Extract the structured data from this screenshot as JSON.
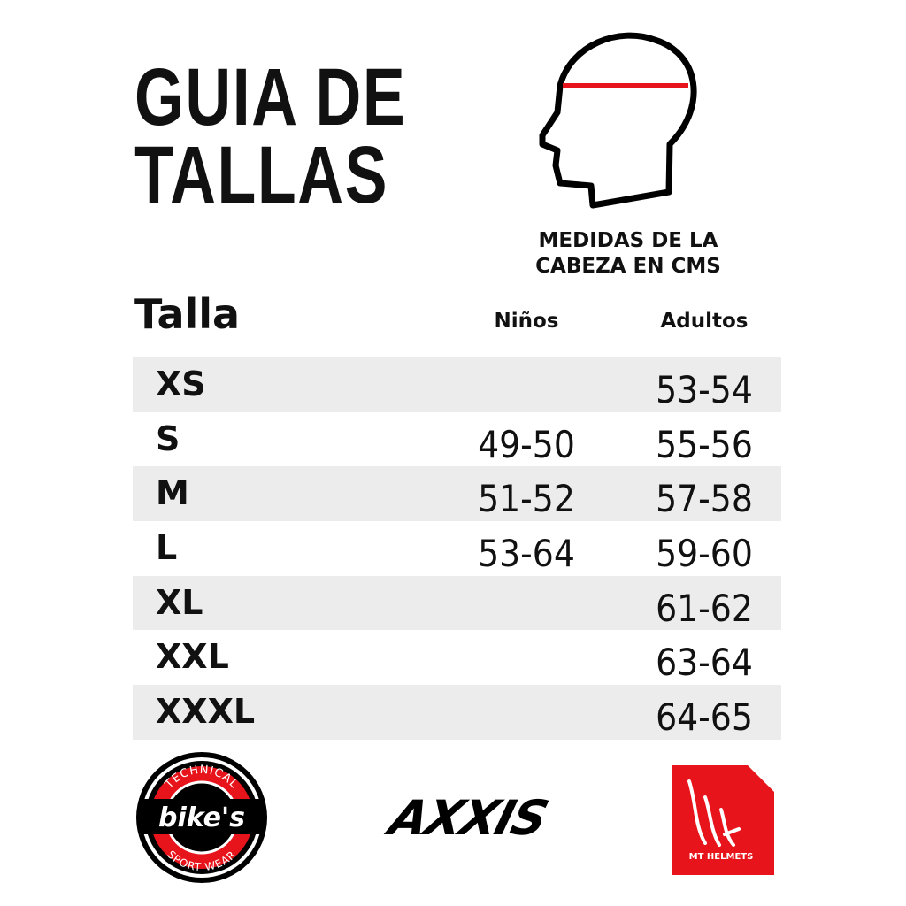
{
  "title": [
    "GUIA DE",
    "TALLAS"
  ],
  "head_caption": [
    "MEDIDAS DE LA",
    "CABEZA EN CMS"
  ],
  "table": {
    "headers": {
      "size": "Talla",
      "kids": "Niños",
      "adults": "Adultos"
    },
    "rows": [
      {
        "size": "XS",
        "kids": "",
        "adults": "53-54"
      },
      {
        "size": "S",
        "kids": "49-50",
        "adults": "55-56"
      },
      {
        "size": "M",
        "kids": "51-52",
        "adults": "57-58"
      },
      {
        "size": "L",
        "kids": "53-64",
        "adults": "59-60"
      },
      {
        "size": "XL",
        "kids": "",
        "adults": "61-62"
      },
      {
        "size": "XXL",
        "kids": "",
        "adults": "63-64"
      },
      {
        "size": "XXXL",
        "kids": "",
        "adults": "64-65"
      }
    ]
  },
  "logos": {
    "bikes": {
      "top": "TECHNICAL",
      "name": "bike's",
      "bottom": "SPORT WEAR"
    },
    "axxis": "AXXIS",
    "mt": "MT HELMETS"
  },
  "colors": {
    "accent_red": "#e8141b",
    "row_shade": "#ececec"
  }
}
